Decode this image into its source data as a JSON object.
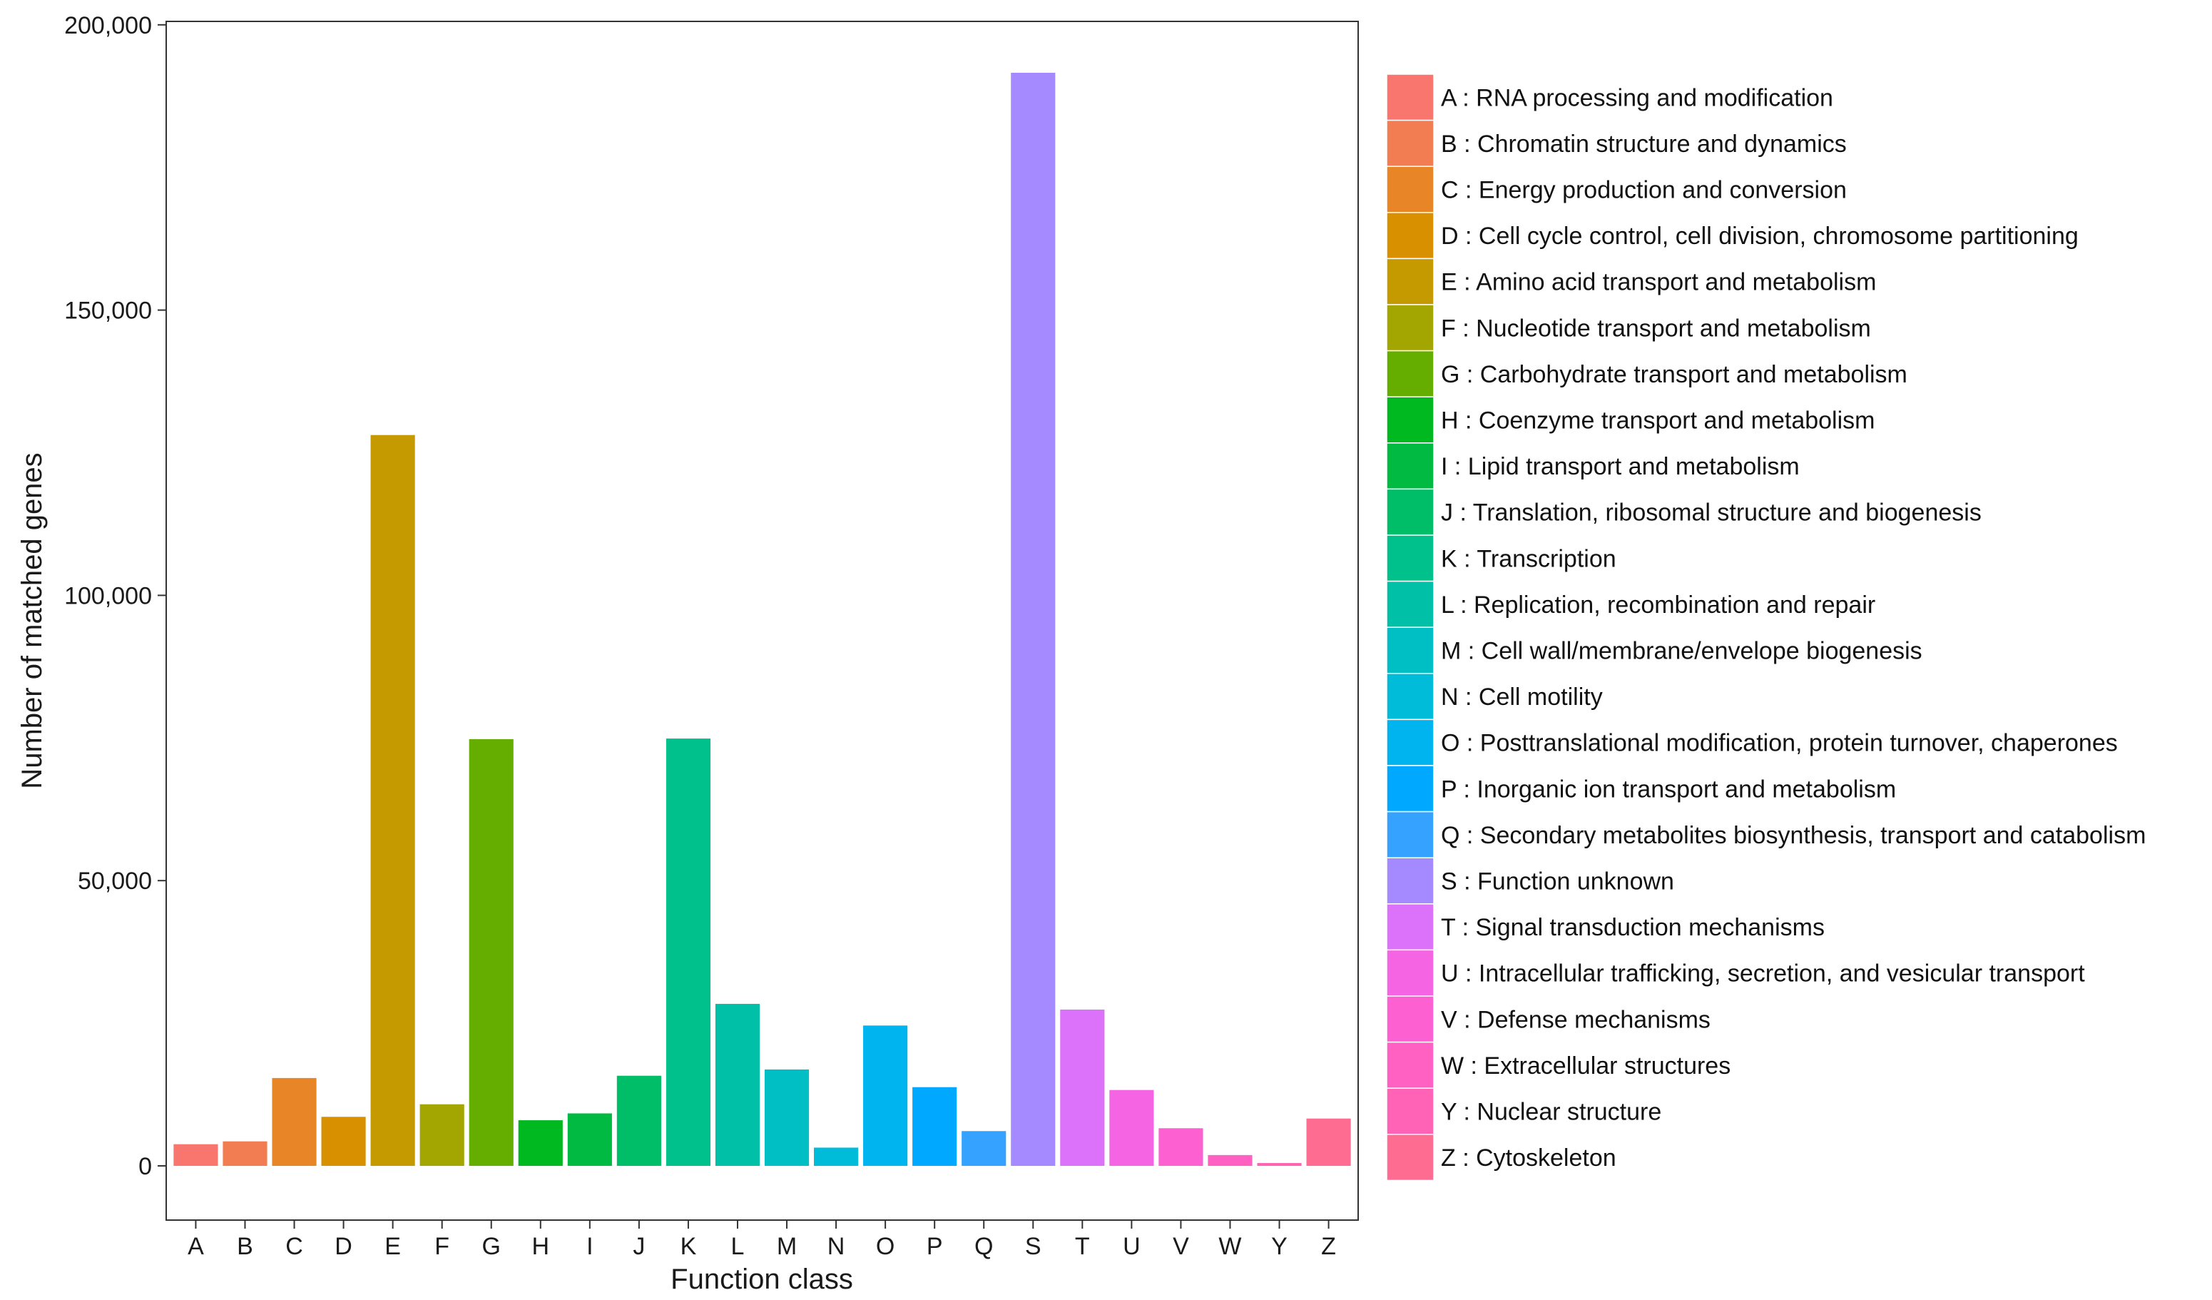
{
  "chart_data": {
    "type": "bar",
    "xlabel": "Function class",
    "ylabel": "Number of matched genes",
    "ylim": [
      -9500,
      200600
    ],
    "yticks": [
      0,
      50000,
      100000,
      150000,
      200000
    ],
    "ytick_labels": [
      "0",
      "50,000",
      "100,000",
      "150,000",
      "200,000"
    ],
    "grid": false,
    "legend_position": "right",
    "categories": [
      "A",
      "B",
      "C",
      "D",
      "E",
      "F",
      "G",
      "H",
      "I",
      "J",
      "K",
      "L",
      "M",
      "N",
      "O",
      "P",
      "Q",
      "S",
      "T",
      "U",
      "V",
      "W",
      "Y",
      "Z"
    ],
    "values": [
      3800,
      4300,
      15400,
      8600,
      128100,
      10800,
      74800,
      8000,
      9200,
      15800,
      74900,
      28400,
      16900,
      3200,
      24600,
      13800,
      6100,
      191600,
      27400,
      13300,
      6600,
      1900,
      500,
      8300
    ],
    "legend": [
      "A : RNA processing and modification",
      "B : Chromatin structure and dynamics",
      "C : Energy production and conversion",
      "D : Cell cycle control, cell division, chromosome partitioning",
      "E : Amino acid transport and metabolism",
      "F : Nucleotide transport and metabolism",
      "G : Carbohydrate transport and metabolism",
      "H : Coenzyme transport and metabolism",
      "I : Lipid transport and metabolism",
      "J : Translation, ribosomal structure and biogenesis",
      "K : Transcription",
      "L : Replication, recombination and repair",
      "M : Cell wall/membrane/envelope biogenesis",
      "N : Cell motility",
      "O : Posttranslational modification, protein turnover, chaperones",
      "P : Inorganic ion transport and metabolism",
      "Q : Secondary metabolites biosynthesis, transport and catabolism",
      "S : Function unknown",
      "T : Signal transduction mechanisms",
      "U : Intracellular trafficking, secretion, and vesicular transport",
      "V : Defense mechanisms",
      "W : Extracellular structures",
      "Y : Nuclear structure",
      "Z : Cytoskeleton"
    ],
    "colors": [
      "#F8766D",
      "#F27D52",
      "#E88526",
      "#D89000",
      "#C49A00",
      "#A3A500",
      "#65AE00",
      "#00B81F",
      "#00BA42",
      "#00BE67",
      "#00C08B",
      "#00C1A7",
      "#00BFC4",
      "#00BCD8",
      "#00B4EF",
      "#00A9FF",
      "#35A2FF",
      "#A58AFF",
      "#DC71FA",
      "#F564E3",
      "#FD61D1",
      "#FF61C3",
      "#FF63B6",
      "#FF6C91"
    ]
  }
}
